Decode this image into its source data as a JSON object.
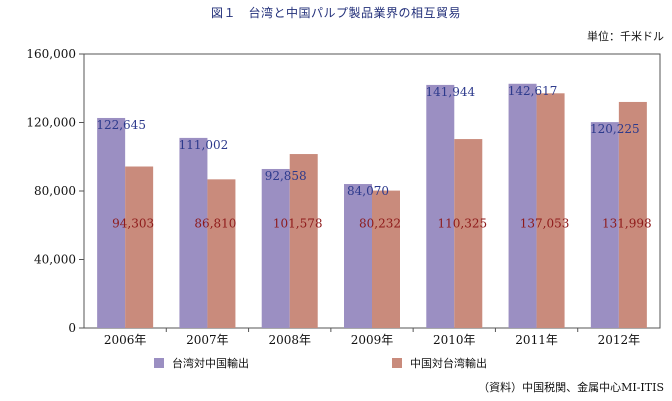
{
  "title": "図１　台湾と中国パルプ製品業界の相互貿易",
  "unit_label": "単位：千米ドル",
  "source": "（資料）中国税関、金属中心MI-ITIS",
  "chart_data": {
    "type": "bar",
    "categories": [
      "2006年",
      "2007年",
      "2008年",
      "2009年",
      "2010年",
      "2011年",
      "2012年"
    ],
    "series": [
      {
        "name": "台湾対中国輸出",
        "values": [
          122645,
          111002,
          92858,
          84070,
          141944,
          142617,
          120225
        ],
        "color": "#9b8fc2",
        "label_color": "#2d3a8c"
      },
      {
        "name": "中国対台湾輸出",
        "values": [
          94303,
          86810,
          101578,
          80232,
          110325,
          137053,
          131998
        ],
        "color": "#c98b7c",
        "label_color": "#8e1a1a"
      }
    ],
    "data_labels": [
      [
        "122,645",
        "111,002",
        "92,858",
        "84,070",
        "141,944",
        "142,617",
        "120,225"
      ],
      [
        "94,303",
        "86,810",
        "101,578",
        "80,232",
        "110,325",
        "137,053",
        "131,998"
      ]
    ],
    "ylim": [
      0,
      160000
    ],
    "yticks": [
      0,
      40000,
      80000,
      120000,
      160000
    ],
    "ytick_labels": [
      "0",
      "40,000",
      "80,000",
      "120,000",
      "160,000"
    ],
    "grid": false,
    "legend_position": "bottom"
  }
}
